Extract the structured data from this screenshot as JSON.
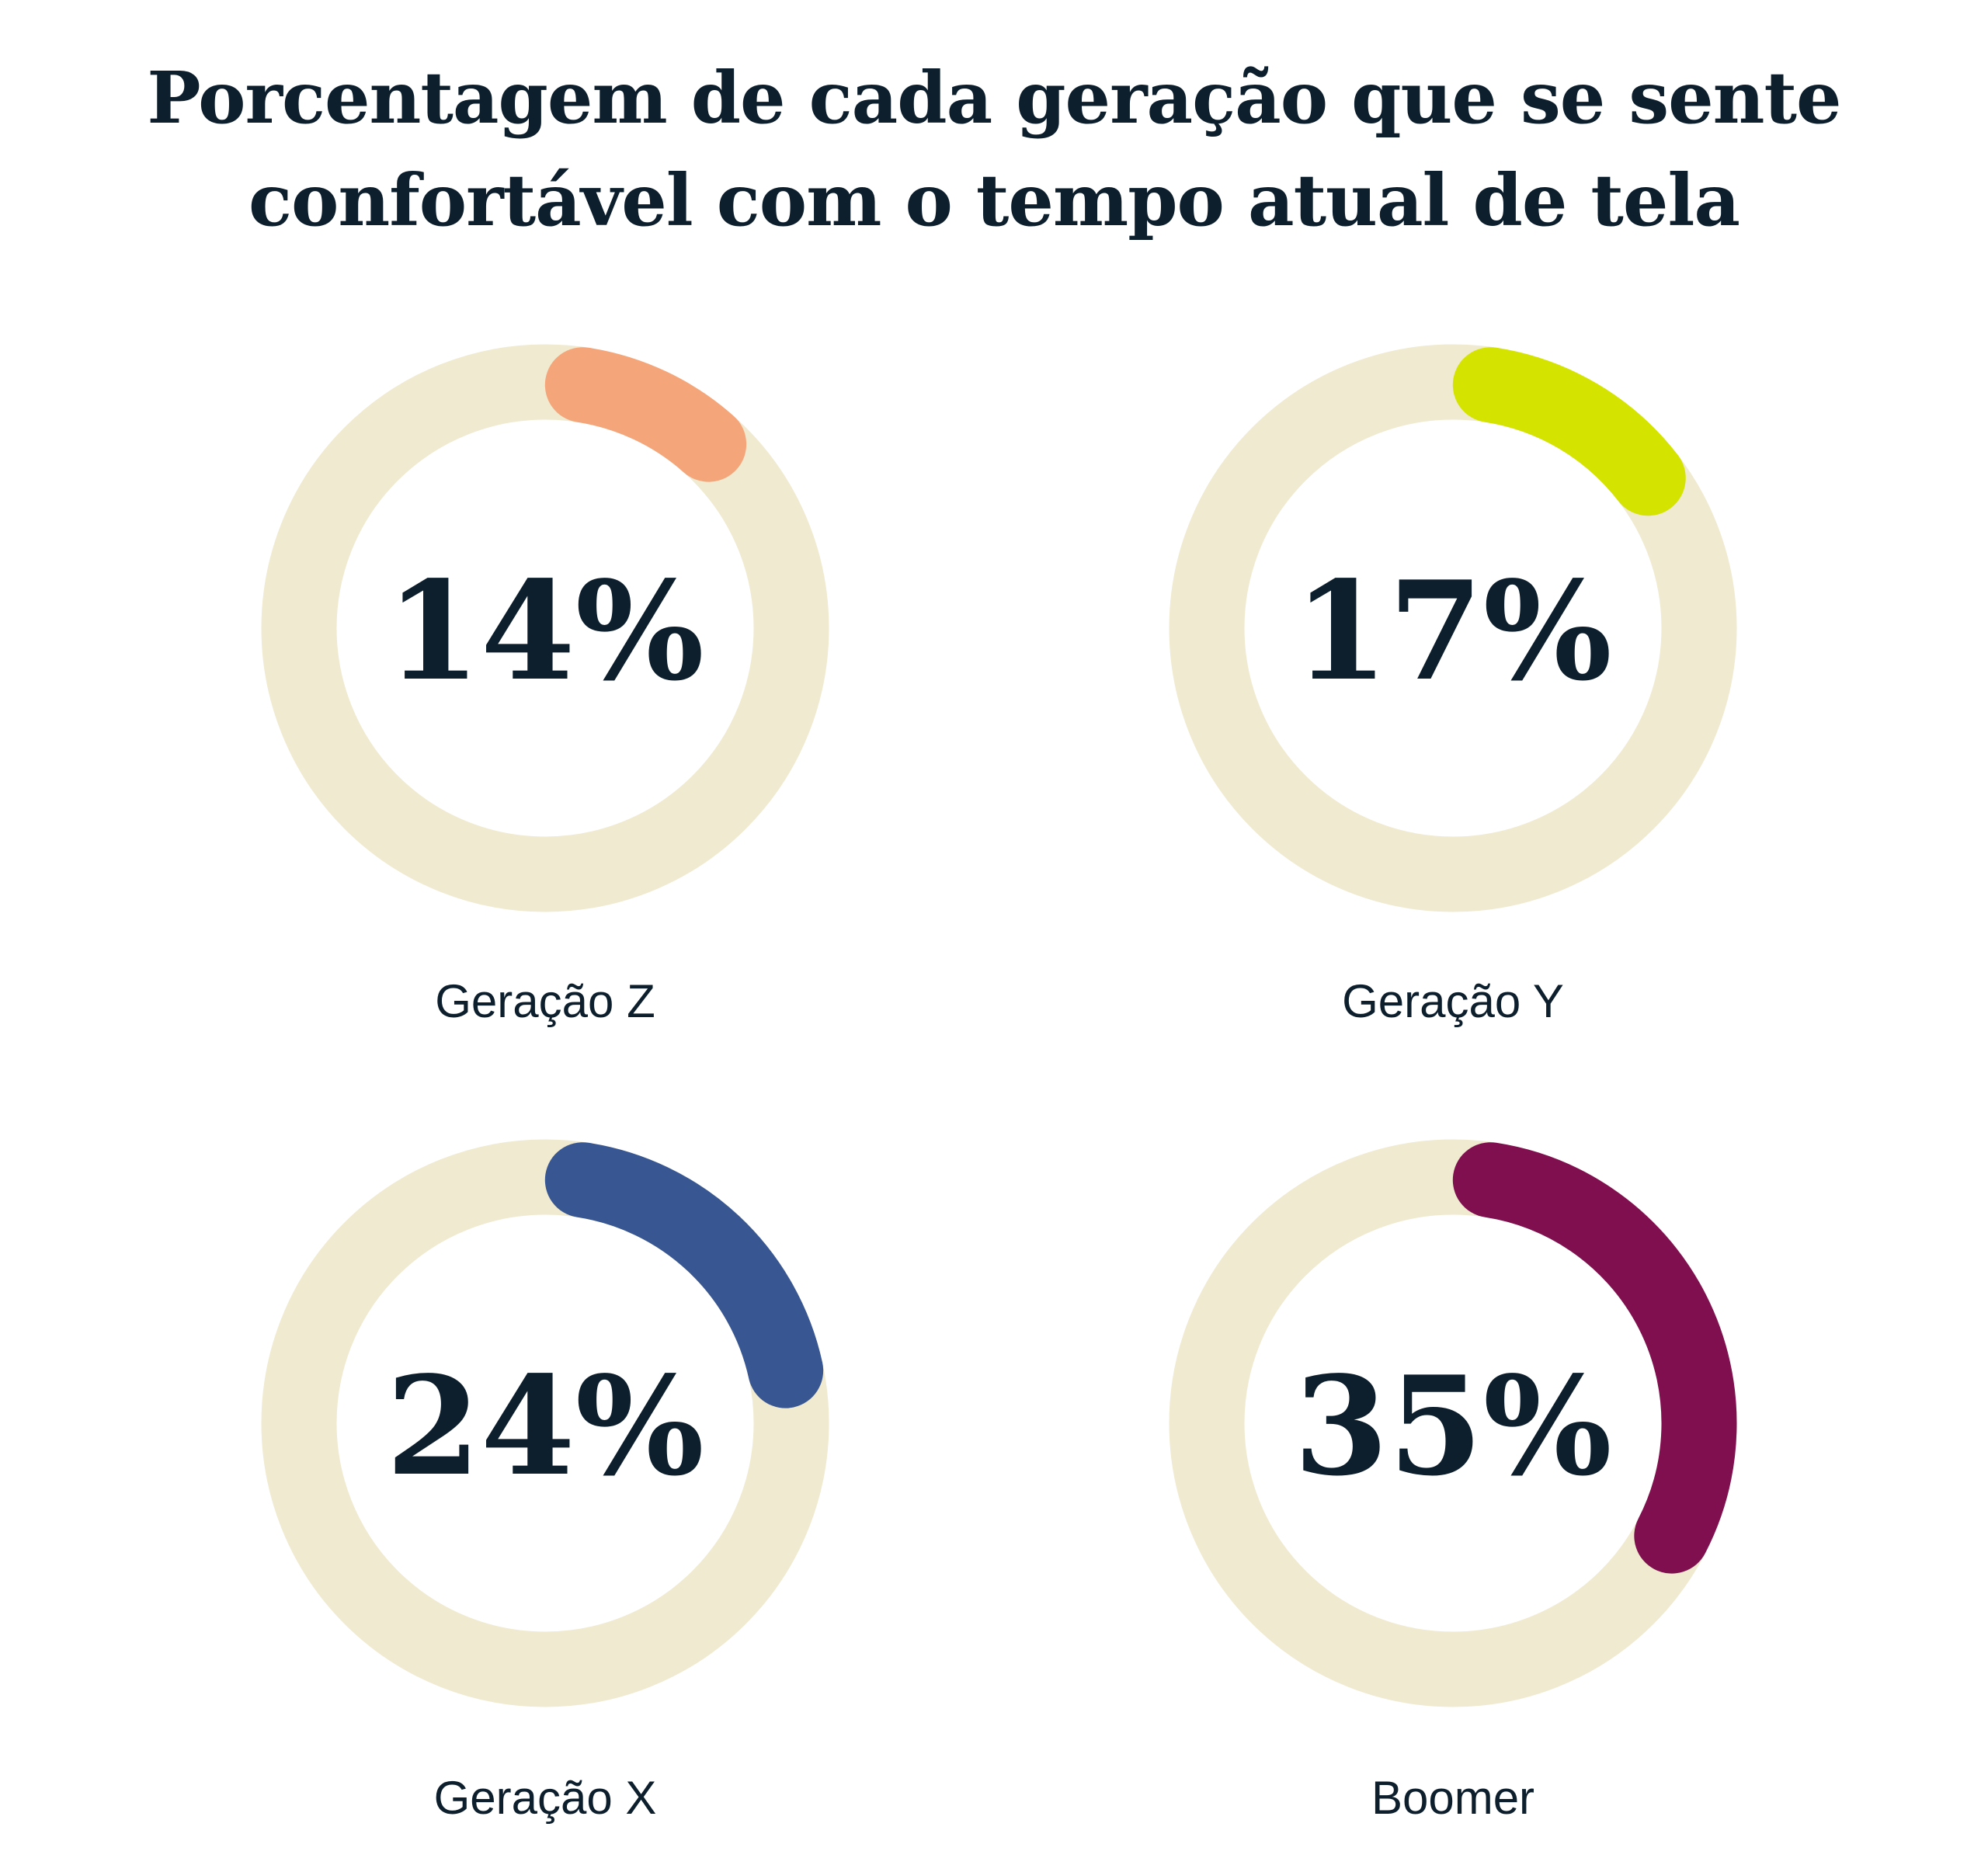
{
  "chart_data": {
    "type": "donut",
    "title": "Porcentagem de cada geração que se sente confortável com o tempo atual de tela",
    "title_lines": [
      "Porcentagem de cada geração que se sente",
      "confortável com o tempo atual de tela"
    ],
    "track_color": "#f0ead0",
    "text_color": "#0d1f2d",
    "charts": [
      {
        "label": "Geração Z",
        "value": 14,
        "value_label": "14%",
        "color": "#f4a57a"
      },
      {
        "label": "Geração Y",
        "value": 17,
        "value_label": "17%",
        "color": "#d4e300"
      },
      {
        "label": "Geração X",
        "value": 24,
        "value_label": "24%",
        "color": "#385792"
      },
      {
        "label": "Boomer",
        "value": 35,
        "value_label": "35%",
        "color": "#7f0f4f"
      }
    ]
  }
}
